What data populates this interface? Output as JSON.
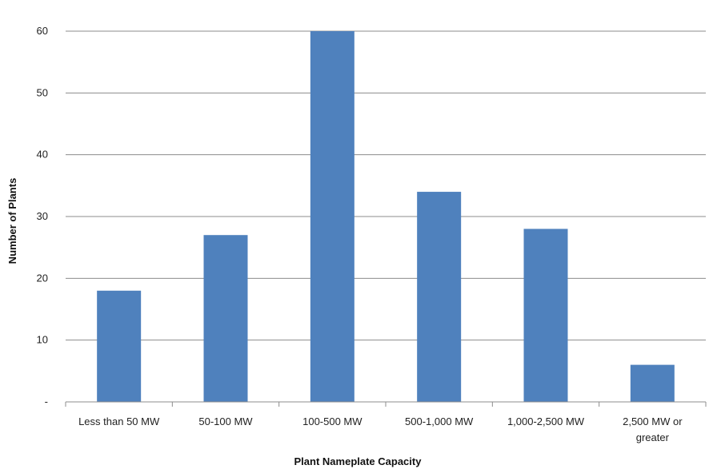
{
  "chart_data": {
    "type": "bar",
    "title": "",
    "xlabel": "Plant Nameplate Capacity",
    "ylabel": "Number of Plants",
    "categories": [
      [
        "Less than 50 MW"
      ],
      [
        "50-100 MW"
      ],
      [
        "100-500 MW"
      ],
      [
        "500-1,000 MW"
      ],
      [
        "1,000-2,500 MW"
      ],
      [
        "2,500 MW or",
        "greater"
      ]
    ],
    "values": [
      18,
      27,
      60,
      34,
      28,
      6
    ],
    "ylim": [
      0,
      60
    ],
    "yticks": [
      0,
      10,
      20,
      30,
      40,
      50,
      60
    ],
    "ytick_labels": [
      "-",
      "10",
      "20",
      "30",
      "40",
      "50",
      "60"
    ],
    "grid": true,
    "legend": "none",
    "bar_color": "#4f81bd"
  }
}
